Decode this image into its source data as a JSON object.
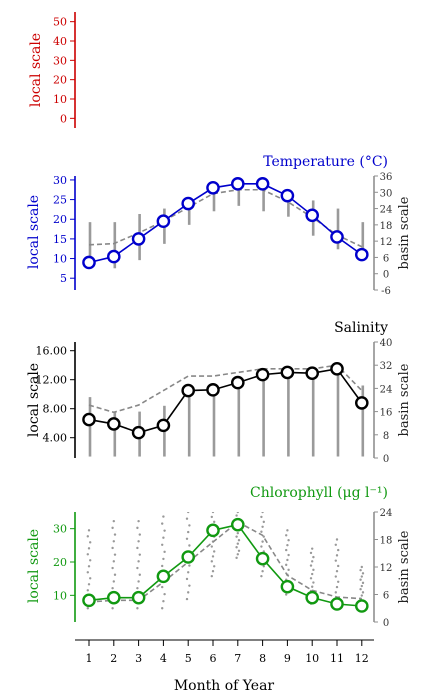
{
  "x_axis": {
    "label": "Month of Year",
    "ticks": [
      1,
      2,
      3,
      4,
      5,
      6,
      7,
      8,
      9,
      10,
      11,
      12
    ]
  },
  "chart_data": [
    {
      "type": "line",
      "title": "",
      "color": "#cc0000",
      "ylabel": "local scale",
      "yticks": [
        0,
        10,
        20,
        30,
        40,
        50
      ],
      "ylim": [
        -5,
        55
      ],
      "series": []
    },
    {
      "type": "line",
      "title": "Temperature (°C)",
      "color": "#0000cc",
      "ylabel": "local scale",
      "ylabel_right": "basin scale",
      "yticks": [
        5,
        10,
        15,
        20,
        25,
        30
      ],
      "ylim": [
        2,
        31
      ],
      "yticks_right": [
        -6,
        0,
        6,
        12,
        18,
        24,
        30,
        36
      ],
      "ylim_right": [
        -6,
        36
      ],
      "x": [
        1,
        2,
        3,
        4,
        5,
        6,
        7,
        8,
        9,
        10,
        11,
        12
      ],
      "series": [
        {
          "role": "local",
          "values": [
            9,
            10.5,
            15,
            19.5,
            24,
            28,
            29,
            29,
            26,
            21,
            15.5,
            11
          ]
        },
        {
          "role": "basin",
          "values": [
            13.5,
            13.8,
            16.5,
            19.5,
            23,
            26.5,
            27.5,
            27.5,
            24.5,
            20.5,
            16,
            13
          ]
        },
        {
          "role": "range",
          "low": [
            3,
            2,
            5,
            11,
            18,
            23,
            25,
            23,
            21,
            14,
            9,
            6
          ],
          "high": [
            19,
            19,
            22,
            24,
            27,
            30,
            33,
            33,
            31,
            27,
            24,
            19
          ]
        }
      ]
    },
    {
      "type": "line",
      "title": "Salinity",
      "color": "#000000",
      "ylabel": "local scale",
      "ylabel_right": "basin scale",
      "yticks": [
        "4.00",
        "8.00",
        "12.00",
        "16.00"
      ],
      "ylim": [
        1.2,
        17.2
      ],
      "yticks_right": [
        0,
        8,
        16,
        24,
        32,
        40
      ],
      "ylim_right": [
        0,
        40
      ],
      "x": [
        1,
        2,
        3,
        4,
        5,
        6,
        7,
        8,
        9,
        10,
        11,
        12
      ],
      "series": [
        {
          "role": "local",
          "values": [
            6.5,
            5.9,
            4.7,
            5.7,
            10.5,
            10.6,
            11.6,
            12.7,
            13.0,
            12.9,
            13.5,
            8.8
          ]
        },
        {
          "role": "basin",
          "values": [
            8.5,
            7.5,
            8.5,
            10.5,
            12.5,
            12.5,
            13,
            13.5,
            13.5,
            13.5,
            14,
            10.5
          ]
        },
        {
          "role": "range",
          "low": [
            0.5,
            0.5,
            0.5,
            0.5,
            0.5,
            0.5,
            0.5,
            0.5,
            0.5,
            0.5,
            0.5,
            0.5
          ],
          "high": [
            21,
            16,
            16,
            18,
            25,
            25,
            28,
            30,
            31,
            31,
            32,
            25
          ]
        }
      ]
    },
    {
      "type": "line",
      "title": "Chlorophyll (μg l⁻¹)",
      "color": "#119911",
      "ylabel": "local scale",
      "ylabel_right": "basin scale",
      "yticks": [
        10,
        20,
        30
      ],
      "ylim": [
        2,
        35
      ],
      "yticks_right": [
        0,
        6,
        12,
        18,
        24
      ],
      "ylim_right": [
        0,
        24
      ],
      "x": [
        1,
        2,
        3,
        4,
        5,
        6,
        7,
        8,
        9,
        10,
        11,
        12
      ],
      "series": [
        {
          "role": "local",
          "values": [
            8.5,
            9.3,
            9.3,
            15.7,
            21.5,
            29.5,
            31.2,
            21.0,
            12.6,
            9.3,
            7.4,
            6.8
          ]
        },
        {
          "role": "basin",
          "values": [
            8,
            8.5,
            8.5,
            14,
            20,
            26,
            32,
            28,
            16,
            11.5,
            9.5,
            9
          ]
        },
        {
          "role": "scatter",
          "low": [
            3,
            3,
            3,
            3,
            5,
            10,
            14,
            10,
            6,
            4,
            3,
            3
          ],
          "high": [
            20,
            22,
            22,
            23,
            24,
            24,
            24,
            24,
            20,
            16,
            18,
            12
          ]
        }
      ]
    }
  ]
}
